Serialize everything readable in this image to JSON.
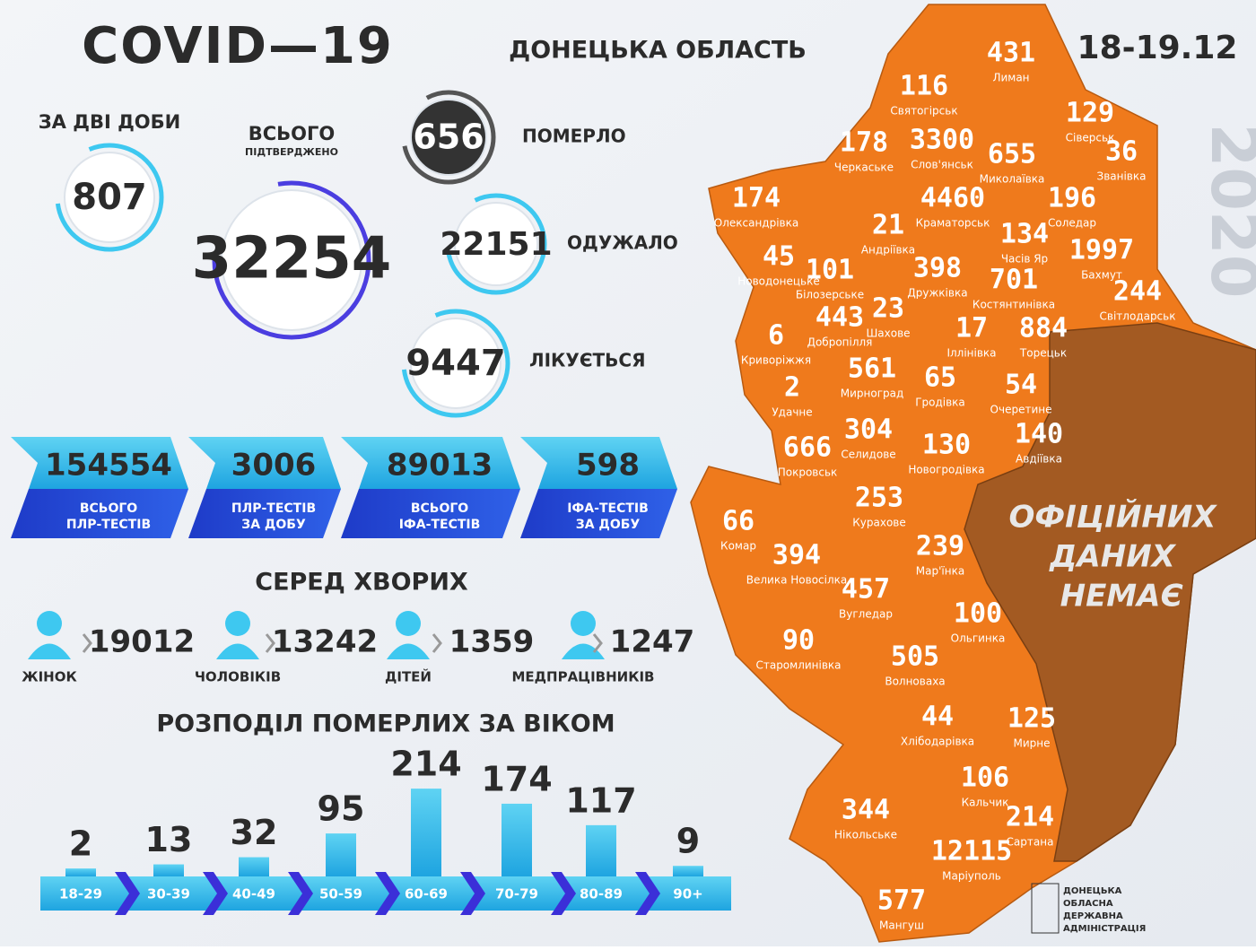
{
  "header": {
    "title": "COVID—19",
    "region": "ДОНЕЦЬКА ОБЛАСТЬ",
    "date": "18-19.12",
    "year": "2020"
  },
  "summary": {
    "two_days": {
      "label": "ЗА ДВІ ДОБИ",
      "value": 807
    },
    "total": {
      "label": "ВСЬОГО",
      "sublabel": "ПІДТВЕРДЖЕНО",
      "value": 32254
    },
    "died": {
      "label": "ПОМЕРЛО",
      "value": 656
    },
    "recovered": {
      "label": "ОДУЖАЛО",
      "value": 22151
    },
    "treated": {
      "label": "ЛІКУЄТЬСЯ",
      "value": 9447
    }
  },
  "tests": [
    {
      "value": 154554,
      "label": [
        "ВСЬОГО",
        "ПЛР-ТЕСТІВ"
      ]
    },
    {
      "value": 3006,
      "label": [
        "ПЛР-ТЕСТІВ",
        "ЗА ДОБУ"
      ]
    },
    {
      "value": 89013,
      "label": [
        "ВСЬОГО",
        "ІФА-ТЕСТІВ"
      ]
    },
    {
      "value": 598,
      "label": [
        "ІФА-ТЕСТІВ",
        "ЗА ДОБУ"
      ]
    }
  ],
  "among_sick": {
    "title": "СЕРЕД ХВОРИХ",
    "items": [
      {
        "label": "ЖІНОК",
        "value": 19012
      },
      {
        "label": "ЧОЛОВІКІВ",
        "value": 13242
      },
      {
        "label": "ДІТЕЙ",
        "value": 1359
      },
      {
        "label": "МЕДПРАЦІВНИКІВ",
        "value": 1247
      }
    ]
  },
  "age_deaths": {
    "title": "РОЗПОДІЛ ПОМЕРЛИХ ЗА ВІКОМ",
    "categories": [
      "18-29",
      "30-39",
      "40-49",
      "50-59",
      "60-69",
      "70-79",
      "80-89",
      "90+"
    ],
    "values": [
      2,
      13,
      32,
      95,
      214,
      174,
      117,
      9
    ]
  },
  "map": {
    "no_data": [
      "ОФІЦІЙНИХ",
      "ДАНИХ",
      "НЕМАЄ"
    ],
    "districts": [
      {
        "name": "Лиман",
        "value": 431
      },
      {
        "name": "Святогірськ",
        "value": 116
      },
      {
        "name": "Сіверськ",
        "value": 129
      },
      {
        "name": "Черкаське",
        "value": 178
      },
      {
        "name": "Слов'янськ",
        "value": 3300
      },
      {
        "name": "Миколаївка",
        "value": 655
      },
      {
        "name": "Званівка",
        "value": 36
      },
      {
        "name": "Олександрівка",
        "value": 174
      },
      {
        "name": "Краматорськ",
        "value": 4460
      },
      {
        "name": "Андріївка",
        "value": 21
      },
      {
        "name": "Соледар",
        "value": 196
      },
      {
        "name": "Часів Яр",
        "value": 134
      },
      {
        "name": "Бахмут",
        "value": 1997
      },
      {
        "name": "Новодонецьке",
        "value": 45
      },
      {
        "name": "Білозерське",
        "value": 101
      },
      {
        "name": "Дружківка",
        "value": 398
      },
      {
        "name": "Костянтинівка",
        "value": 701
      },
      {
        "name": "Світлодарськ",
        "value": 244
      },
      {
        "name": "Добропілля",
        "value": 443
      },
      {
        "name": "Шахове",
        "value": 23
      },
      {
        "name": "Криворіжжя",
        "value": 6
      },
      {
        "name": "Іллінівка",
        "value": 17
      },
      {
        "name": "Торецьк",
        "value": 884
      },
      {
        "name": "Мирноград",
        "value": 561
      },
      {
        "name": "Гродівка",
        "value": 65
      },
      {
        "name": "Очеретине",
        "value": 54
      },
      {
        "name": "Удачне",
        "value": 2
      },
      {
        "name": "Селидове",
        "value": 304
      },
      {
        "name": "Покровськ",
        "value": 666
      },
      {
        "name": "Новогродівка",
        "value": 130
      },
      {
        "name": "Авдіївка",
        "value": 140
      },
      {
        "name": "Курахове",
        "value": 253
      },
      {
        "name": "Комар",
        "value": 66
      },
      {
        "name": "Велика Новосілка",
        "value": 394
      },
      {
        "name": "Мар'їнка",
        "value": 239
      },
      {
        "name": "Вугледар",
        "value": 457
      },
      {
        "name": "Ольгинка",
        "value": 100
      },
      {
        "name": "Старомлинівка",
        "value": 90
      },
      {
        "name": "Волноваха",
        "value": 505
      },
      {
        "name": "Хлібодарівка",
        "value": 44
      },
      {
        "name": "Мирне",
        "value": 125
      },
      {
        "name": "Кальчик",
        "value": 106
      },
      {
        "name": "Нікольське",
        "value": 344
      },
      {
        "name": "Сартана",
        "value": 214
      },
      {
        "name": "Маріуполь",
        "value": 12115
      },
      {
        "name": "Мангуш",
        "value": 577
      }
    ]
  },
  "footer": {
    "org": [
      "ДОНЕЦЬКА",
      "ОБЛАСНА",
      "ДЕРЖАВНА",
      "АДМІНІСТРАЦІЯ"
    ]
  }
}
